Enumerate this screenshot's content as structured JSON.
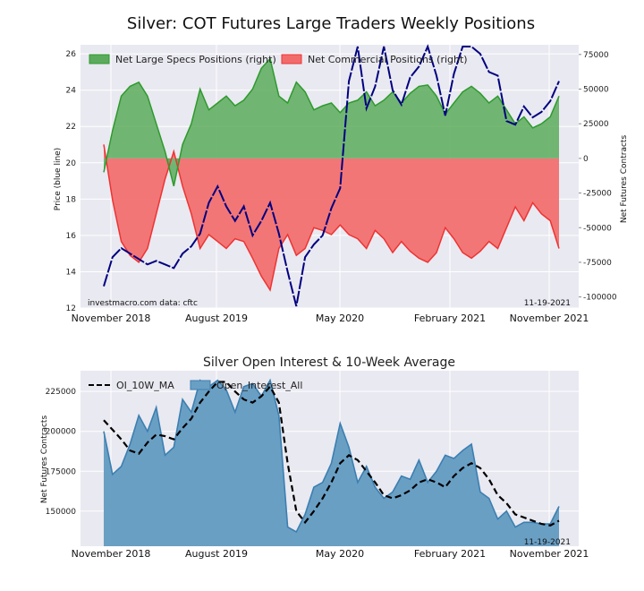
{
  "chart_data": [
    {
      "type": "line+area",
      "title": "Silver: COT Futures Large Traders Weekly Positions",
      "ylabel_left": "Price (blue line)",
      "ylabel_right": "Net Futures Contracts",
      "x_tick_labels": [
        "November 2018",
        "August 2019",
        "May 2020",
        "February 2021",
        "November 2021"
      ],
      "ylim_left": [
        12,
        26.5
      ],
      "yticks_left": [
        "12",
        "14",
        "16",
        "18",
        "20",
        "22",
        "24",
        "26"
      ],
      "ylim_right": [
        -108000,
        82000
      ],
      "yticks_right": [
        "-100000",
        "-75000",
        "-50000",
        "-25000",
        "0",
        "25000",
        "50000",
        "75000"
      ],
      "legend": [
        "Net Large Specs Positions (right)",
        "Net Commercial Positions (right)"
      ],
      "legend_position": "top-left",
      "note_left": "investmacro.com    data: cftc",
      "note_right": "11-19-2021",
      "colors": {
        "specs_fill": "#5cab5c",
        "specs_line": "#2e9a2e",
        "comm_fill": "#f26b6b",
        "comm_line": "#ee3333",
        "price": "#000080"
      },
      "x_weeks": [
        0,
        3,
        6,
        9,
        12,
        15,
        18,
        21,
        24,
        27,
        30,
        33,
        36,
        39,
        42,
        45,
        48,
        51,
        54,
        57,
        60,
        63,
        66,
        69,
        72,
        75,
        78,
        81,
        84,
        87,
        90,
        93,
        96,
        99,
        102,
        105,
        108,
        111,
        114,
        117,
        120,
        123,
        126,
        129,
        132,
        135,
        138,
        141,
        144,
        147,
        150,
        153,
        156
      ],
      "series": [
        {
          "name": "Net Large Specs Positions (right)",
          "values": [
            -10000,
            20000,
            45000,
            52000,
            55000,
            45000,
            25000,
            5000,
            -20000,
            10000,
            25000,
            50000,
            35000,
            40000,
            45000,
            38000,
            42000,
            50000,
            65000,
            72000,
            45000,
            40000,
            55000,
            48000,
            35000,
            38000,
            40000,
            33000,
            40000,
            42000,
            48000,
            38000,
            42000,
            48000,
            40000,
            47000,
            52000,
            53000,
            45000,
            32000,
            40000,
            48000,
            52000,
            47000,
            40000,
            45000,
            35000,
            25000,
            30000,
            22000,
            25000,
            30000,
            45000
          ]
        },
        {
          "name": "Net Commercial Positions (right)",
          "values": [
            10000,
            -30000,
            -60000,
            -70000,
            -75000,
            -65000,
            -40000,
            -15000,
            5000,
            -20000,
            -40000,
            -65000,
            -55000,
            -60000,
            -65000,
            -58000,
            -60000,
            -72000,
            -85000,
            -95000,
            -65000,
            -55000,
            -70000,
            -65000,
            -50000,
            -52000,
            -55000,
            -48000,
            -55000,
            -58000,
            -65000,
            -52000,
            -58000,
            -68000,
            -60000,
            -67000,
            -72000,
            -75000,
            -68000,
            -50000,
            -58000,
            -68000,
            -72000,
            -67000,
            -60000,
            -65000,
            -50000,
            -35000,
            -45000,
            -32000,
            -40000,
            -45000,
            -65000
          ]
        },
        {
          "name": "Price",
          "values": [
            13.2,
            14.8,
            15.3,
            15.0,
            14.7,
            14.4,
            14.6,
            14.4,
            14.2,
            15.0,
            15.4,
            16.1,
            17.8,
            18.7,
            17.6,
            16.8,
            17.6,
            16.0,
            16.8,
            17.8,
            16.1,
            14.0,
            11.8,
            14.8,
            15.5,
            16.0,
            17.5,
            18.6,
            24.5,
            27.0,
            23.0,
            24.2,
            26.5,
            24.0,
            23.2,
            24.7,
            25.3,
            26.5,
            24.8,
            22.6,
            24.9,
            26.5,
            27.5,
            26.0,
            25.0,
            24.8,
            22.3,
            22.1,
            23.1,
            22.5,
            22.8,
            23.4,
            24.5
          ]
        }
      ]
    },
    {
      "type": "area+line",
      "title": "Silver Open Interest & 10-Week Average",
      "ylabel": "Net Futures Contracts",
      "x_tick_labels": [
        "November 2018",
        "August 2019",
        "May 2020",
        "February 2021",
        "November 2021"
      ],
      "ylim": [
        128000,
        238000
      ],
      "yticks": [
        "150000",
        "175000",
        "200000",
        "225000"
      ],
      "legend": [
        "OI_10W_MA",
        "Open_Interest_All"
      ],
      "legend_position": "top-left",
      "note_right": "11-19-2021",
      "colors": {
        "oi_fill": "#6a9fc4",
        "oi_line": "#3c7fb0",
        "ma": "#000000"
      },
      "x_weeks": [
        0,
        3,
        6,
        9,
        12,
        15,
        18,
        21,
        24,
        27,
        30,
        33,
        36,
        39,
        42,
        45,
        48,
        51,
        54,
        57,
        60,
        63,
        66,
        69,
        72,
        75,
        78,
        81,
        84,
        87,
        90,
        93,
        96,
        99,
        102,
        105,
        108,
        111,
        114,
        117,
        120,
        123,
        126,
        129,
        132,
        135,
        138,
        141,
        144,
        147,
        150,
        153,
        156
      ],
      "series": [
        {
          "name": "Open_Interest_All",
          "values": [
            200000,
            173000,
            178000,
            192000,
            210000,
            200000,
            215000,
            185000,
            190000,
            220000,
            212000,
            232000,
            228000,
            232000,
            226000,
            212000,
            228000,
            230000,
            222000,
            232000,
            210000,
            140000,
            137000,
            148000,
            165000,
            168000,
            180000,
            205000,
            190000,
            168000,
            178000,
            165000,
            158000,
            162000,
            172000,
            170000,
            182000,
            168000,
            175000,
            185000,
            183000,
            188000,
            192000,
            162000,
            158000,
            145000,
            150000,
            140000,
            143000,
            143000,
            142000,
            142000,
            153000
          ]
        },
        {
          "name": "OI_10W_MA",
          "values": [
            207000,
            201000,
            195000,
            188000,
            186000,
            193000,
            198000,
            197000,
            195000,
            202000,
            208000,
            218000,
            225000,
            231000,
            231000,
            225000,
            220000,
            218000,
            222000,
            228000,
            218000,
            180000,
            150000,
            143000,
            150000,
            158000,
            168000,
            180000,
            185000,
            182000,
            175000,
            168000,
            160000,
            158000,
            160000,
            163000,
            168000,
            170000,
            168000,
            165000,
            172000,
            177000,
            180000,
            177000,
            170000,
            160000,
            155000,
            148000,
            146000,
            144000,
            142000,
            141000,
            144000
          ]
        }
      ]
    }
  ]
}
